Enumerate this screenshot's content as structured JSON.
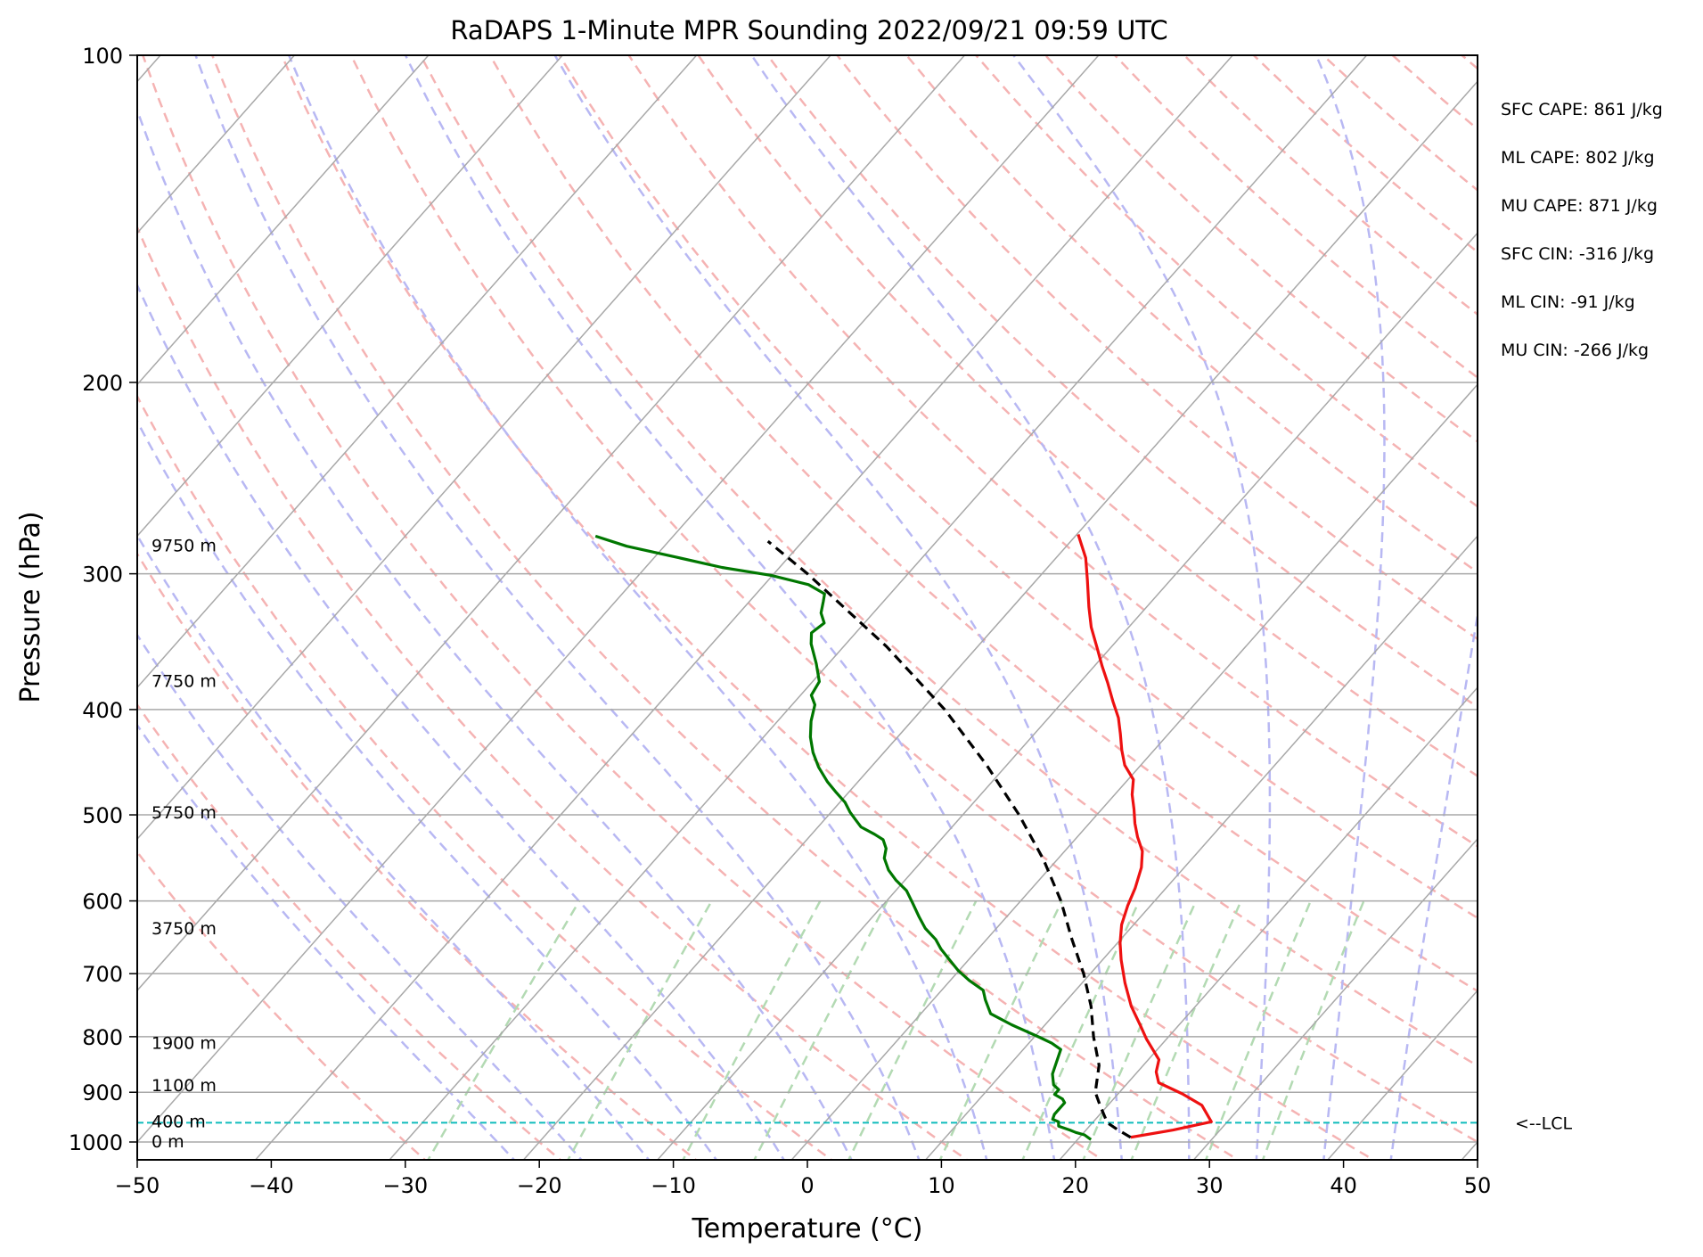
{
  "chart_data": {
    "type": "line",
    "subtype": "skew-t log-p sounding",
    "title": "RaDAPS 1-Minute MPR Sounding 2022/09/21 09:59 UTC",
    "xlabel": "Temperature (°C)",
    "ylabel": "Pressure (hPa)",
    "xlim": [
      -50,
      50
    ],
    "ylim": [
      1050,
      100
    ],
    "y_scale": "log",
    "x_ticks": [
      -50,
      -40,
      -30,
      -20,
      -10,
      0,
      10,
      20,
      30,
      40,
      50
    ],
    "x_tick_labels": [
      "−50",
      "−40",
      "−30",
      "−20",
      "−10",
      "0",
      "10",
      "20",
      "30",
      "40",
      "50"
    ],
    "y_ticks": [
      1000,
      900,
      800,
      700,
      600,
      500,
      400,
      300,
      200,
      100
    ],
    "y_tick_labels": [
      "1000",
      "900",
      "800",
      "700",
      "600",
      "500",
      "400",
      "300",
      "200",
      "100"
    ],
    "grid": true,
    "colors": {
      "temperature": "#ee1111",
      "dewpoint": "#007700",
      "parcel": "#000000",
      "isotherm": "#a8a8a8",
      "dry_adiabat": "#f5b3b3",
      "moist_adiabat": "#b8b8f3",
      "mixing_ratio": "#b3dab3",
      "lcl": "#10bcbc"
    },
    "series": [
      {
        "key": "temperature",
        "style": "solid",
        "points": [
          [
            23.8,
            990
          ],
          [
            26.5,
            975
          ],
          [
            28.8,
            958
          ],
          [
            27.0,
            925
          ],
          [
            24.8,
            903
          ],
          [
            22.3,
            882
          ],
          [
            21.4,
            862
          ],
          [
            20.8,
            840
          ],
          [
            19.6,
            821
          ],
          [
            18.5,
            804
          ],
          [
            17.2,
            782
          ],
          [
            15.2,
            750
          ],
          [
            13.2,
            714
          ],
          [
            11.4,
            680
          ],
          [
            10.2,
            656
          ],
          [
            9.1,
            631
          ],
          [
            8.3,
            606
          ],
          [
            7.7,
            584
          ],
          [
            6.8,
            559
          ],
          [
            5.8,
            540
          ],
          [
            4.5,
            524
          ],
          [
            3.4,
            509
          ],
          [
            2.4,
            494
          ],
          [
            1.3,
            479
          ],
          [
            0.4,
            464
          ],
          [
            -1.2,
            450
          ],
          [
            -2.4,
            436
          ],
          [
            -3.6,
            421
          ],
          [
            -4.8,
            407
          ],
          [
            -6.3,
            393
          ],
          [
            -7.9,
            378
          ],
          [
            -9.4,
            365
          ],
          [
            -11.0,
            351
          ],
          [
            -12.8,
            336
          ],
          [
            -14.3,
            322
          ],
          [
            -16.2,
            304
          ],
          [
            -17.8,
            290
          ],
          [
            -19.9,
            276
          ]
        ]
      },
      {
        "key": "dewpoint",
        "style": "solid",
        "points": [
          [
            21.0,
            995
          ],
          [
            20.2,
            985
          ],
          [
            19.4,
            980
          ],
          [
            18.8,
            975
          ],
          [
            17.7,
            967
          ],
          [
            17.4,
            958
          ],
          [
            16.8,
            953
          ],
          [
            16.6,
            943
          ],
          [
            16.6,
            920
          ],
          [
            16.2,
            913
          ],
          [
            15.3,
            904
          ],
          [
            15.3,
            895
          ],
          [
            14.6,
            886
          ],
          [
            13.8,
            866
          ],
          [
            12.8,
            822
          ],
          [
            11.7,
            811
          ],
          [
            10.4,
            801
          ],
          [
            7.5,
            780
          ],
          [
            5.2,
            762
          ],
          [
            3.9,
            740
          ],
          [
            3.1,
            725
          ],
          [
            1.4,
            710
          ],
          [
            -0.1,
            695
          ],
          [
            -1.4,
            680
          ],
          [
            -2.8,
            664
          ],
          [
            -3.8,
            651
          ],
          [
            -5.3,
            636
          ],
          [
            -6.5,
            621
          ],
          [
            -7.9,
            603
          ],
          [
            -9.2,
            587
          ],
          [
            -10.7,
            574
          ],
          [
            -11.9,
            562
          ],
          [
            -13.0,
            548
          ],
          [
            -13.5,
            537
          ],
          [
            -14.3,
            527
          ],
          [
            -15.3,
            521
          ],
          [
            -16.8,
            513
          ],
          [
            -17.7,
            505
          ],
          [
            -18.6,
            497
          ],
          [
            -19.6,
            487
          ],
          [
            -20.9,
            477
          ],
          [
            -22.3,
            466
          ],
          [
            -23.9,
            452
          ],
          [
            -25.3,
            438
          ],
          [
            -26.5,
            424
          ],
          [
            -27.5,
            410
          ],
          [
            -28.3,
            396
          ],
          [
            -29.2,
            388
          ],
          [
            -29.5,
            377
          ],
          [
            -30.9,
            363
          ],
          [
            -32.6,
            348
          ],
          [
            -33.3,
            340
          ],
          [
            -33.0,
            333
          ],
          [
            -33.9,
            326
          ],
          [
            -34.5,
            318
          ],
          [
            -34.9,
            313
          ],
          [
            -36.7,
            307
          ],
          [
            -40.1,
            301
          ],
          [
            -44.3,
            296
          ],
          [
            -48.8,
            289
          ],
          [
            -52.8,
            283
          ],
          [
            -55.8,
            277
          ]
        ]
      },
      {
        "key": "parcel",
        "style": "dashed",
        "points": [
          [
            23.8,
            990
          ],
          [
            22.4,
            975
          ],
          [
            21.1,
            960
          ],
          [
            19.4,
            925
          ],
          [
            18.2,
            900
          ],
          [
            16.7,
            850
          ],
          [
            14.4,
            800
          ],
          [
            12.2,
            750
          ],
          [
            9.5,
            700
          ],
          [
            6.3,
            650
          ],
          [
            3.0,
            600
          ],
          [
            -1.0,
            550
          ],
          [
            -5.8,
            500
          ],
          [
            -11.5,
            450
          ],
          [
            -18.3,
            400
          ],
          [
            -26.8,
            350
          ],
          [
            -37.5,
            300
          ],
          [
            -42.6,
            280
          ]
        ]
      }
    ],
    "lcl": {
      "pressure": 960,
      "label": "<--LCL"
    },
    "height_labels": [
      {
        "text": "0 m",
        "pressure": 1000
      },
      {
        "text": "400 m",
        "pressure": 958
      },
      {
        "text": "1100 m",
        "pressure": 888
      },
      {
        "text": "1900 m",
        "pressure": 812
      },
      {
        "text": "3750 m",
        "pressure": 637
      },
      {
        "text": "5750 m",
        "pressure": 498
      },
      {
        "text": "7750 m",
        "pressure": 377
      },
      {
        "text": "9750 m",
        "pressure": 283
      }
    ],
    "annotations": [
      "SFC CAPE: 861 J/kg",
      "ML CAPE: 802 J/kg",
      "MU CAPE: 871 J/kg",
      "SFC CIN: -316 J/kg",
      "ML CIN: -91 J/kg",
      "MU CIN: -266 J/kg"
    ]
  }
}
